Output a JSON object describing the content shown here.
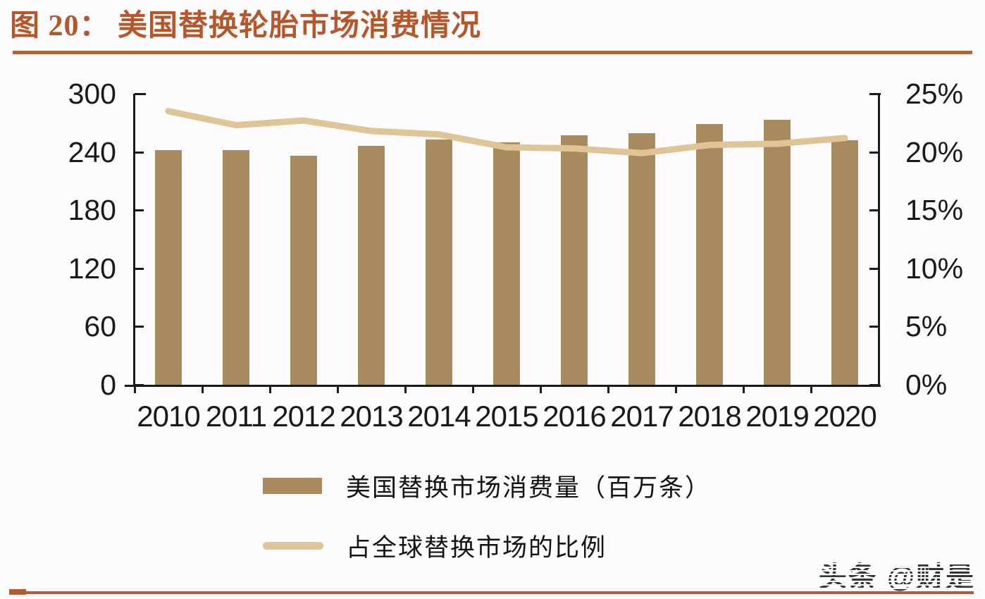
{
  "header": {
    "title": "图 20： 美国替换轮胎市场消费情况",
    "title_color": "#b4572a",
    "rule_color": "#a9673d"
  },
  "footer": {
    "rule_color": "#b15c33"
  },
  "watermark": {
    "text": "头条 @财是"
  },
  "colors": {
    "background": "#fcfbfd",
    "bar": "#a98a5e",
    "line": "#dfc496",
    "axis": "#1a1a1a"
  },
  "chart_data": {
    "type": "bar",
    "subtype": "dual-axis bar + line",
    "categories": [
      "2010",
      "2011",
      "2012",
      "2013",
      "2014",
      "2015",
      "2016",
      "2017",
      "2018",
      "2019",
      "2020"
    ],
    "series": [
      {
        "name": "美国替换市场消费量（百万条）",
        "type": "bar",
        "axis": "left",
        "color": "#a98a5e",
        "values": [
          242,
          242,
          236,
          246,
          253,
          250,
          257,
          259,
          269,
          273,
          252
        ]
      },
      {
        "name": "占全球替换市场的比例",
        "type": "line",
        "axis": "right",
        "color": "#dfc496",
        "values": [
          23.5,
          22.3,
          22.7,
          21.8,
          21.5,
          20.4,
          20.3,
          19.9,
          20.6,
          20.7,
          21.2
        ]
      }
    ],
    "left_axis": {
      "min": 0,
      "max": 300,
      "tick_step": 60,
      "tick_labels": [
        "0",
        "60",
        "120",
        "180",
        "240",
        "300"
      ]
    },
    "right_axis": {
      "min": 0,
      "max": 25,
      "tick_step": 5,
      "tick_labels": [
        "0%",
        "5%",
        "10%",
        "15%",
        "20%",
        "25%"
      ]
    },
    "grid": false,
    "legend_position": "bottom-left",
    "title": "美国替换轮胎市场消费情况"
  }
}
